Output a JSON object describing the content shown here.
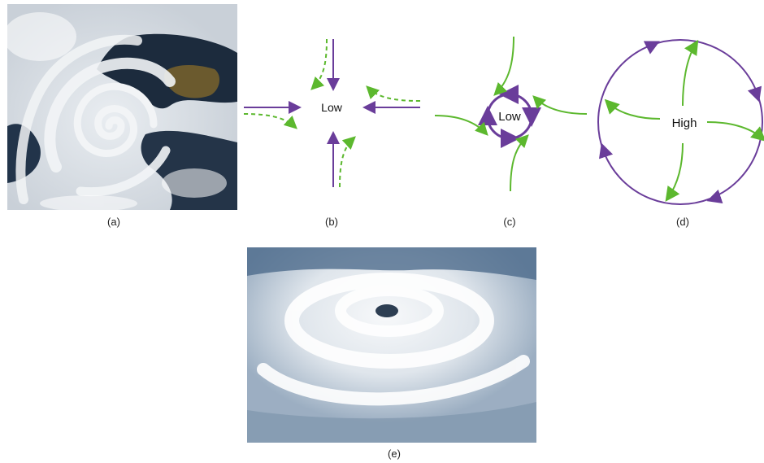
{
  "figure": {
    "panels": [
      {
        "id": "a",
        "caption": "(a)",
        "depicts": "satellite-spiral-cloud-low-pressure"
      },
      {
        "id": "b",
        "caption": "(b)",
        "center_label": "Low"
      },
      {
        "id": "c",
        "caption": "(c)",
        "center_label": "Low"
      },
      {
        "id": "d",
        "caption": "(d)",
        "center_label": "High"
      },
      {
        "id": "e",
        "caption": "(e)",
        "depicts": "satellite-hurricane-eye"
      }
    ],
    "colors": {
      "pressure_arrow": "#6a3d9a",
      "wind_arrow": "#5cb82e",
      "ocean": "#1c2b3d",
      "cloud": "#f2f4f6",
      "land": "#6b5a2e"
    }
  }
}
